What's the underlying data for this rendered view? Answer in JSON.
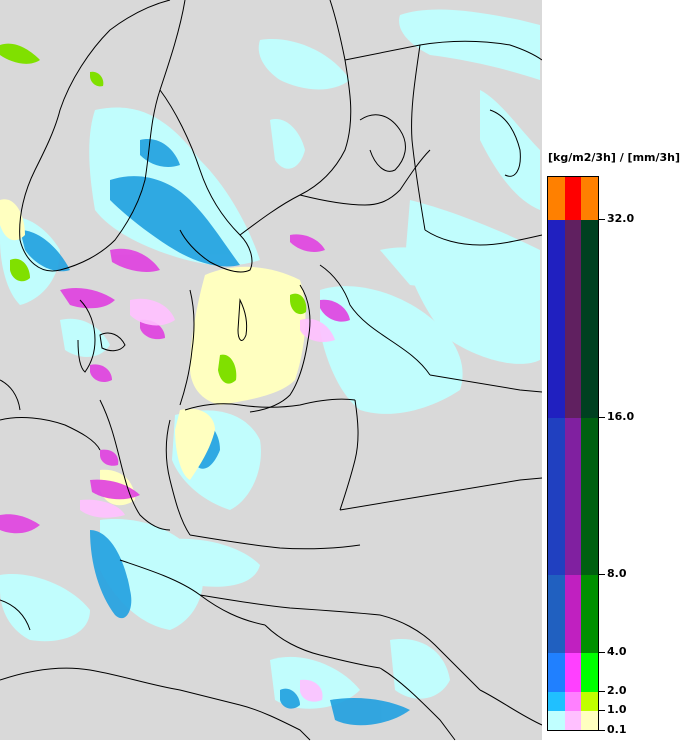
{
  "legend": {
    "unit_label": "[kg/m2/3h] / [mm/3h]",
    "ticks": [
      "32.0",
      "16.0",
      "8.0",
      "4.0",
      "2.0",
      "1.0",
      "0.1"
    ],
    "colors": {
      "col1": [
        "#ff8000",
        "#2020c0",
        "#2040c0",
        "#2060c0",
        "#2080ff",
        "#20c0ff",
        "#c0ffff"
      ],
      "col2": [
        "#ff0000",
        "#602060",
        "#8020a0",
        "#c020c0",
        "#ff40ff",
        "#ff80ff",
        "#ffc0ff"
      ],
      "col3": [
        "#ff8000",
        "#004020",
        "#006010",
        "#009000",
        "#00ff00",
        "#c0ff00",
        "#ffffc0"
      ]
    }
  },
  "map": {
    "background": "#d9d9d9",
    "precip_colors": {
      "light_blue": "#c0ffff",
      "blue": "#20a0e0",
      "magenta": "#e040e0",
      "pale_yellow": "#ffffc0",
      "green": "#80e000"
    }
  }
}
